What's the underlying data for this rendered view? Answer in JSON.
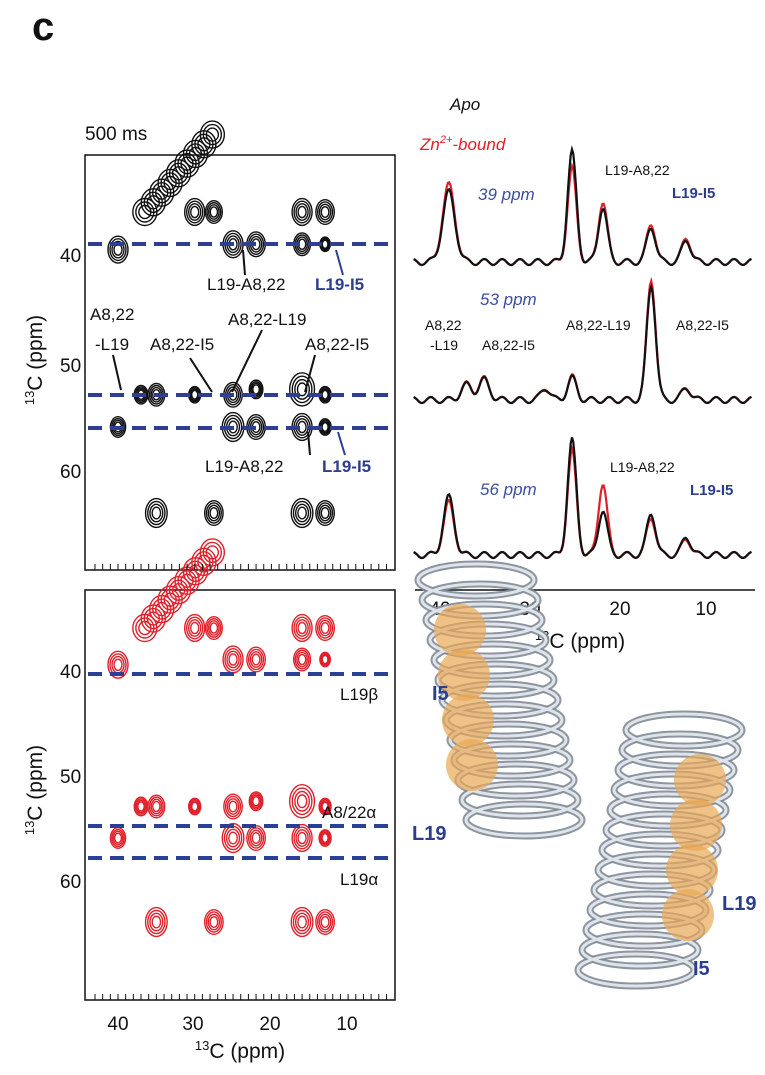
{
  "panel_label": "c",
  "top_left": {
    "title": "500 ms",
    "y_label_sup": "13",
    "y_label": "C (ppm)",
    "yticks": [
      "40",
      "50",
      "60"
    ],
    "annotations": [
      "L19-A8,22",
      "L19-I5",
      "A8,22",
      "-L19",
      "A8,22-I5",
      "A8,22-L19",
      "A8,22-I5",
      "L19-A8,22",
      "L19-I5"
    ]
  },
  "bottom_left": {
    "y_label_sup": "13",
    "y_label": "C (ppm)",
    "yticks": [
      "40",
      "50",
      "60"
    ],
    "xticks": [
      "40",
      "30",
      "20",
      "10"
    ],
    "x_label_sup": "13",
    "x_label": "C (ppm)",
    "annotations": [
      "L19β",
      "A8/22α",
      "L19α"
    ]
  },
  "spectra": {
    "legend": {
      "apo": "Apo",
      "zn": "Zn",
      "zn_sup": "2+",
      "zn_rest": "-bound"
    },
    "traces": [
      {
        "label": "39 ppm",
        "annotations": [
          "L19-A8,22",
          "L19-I5"
        ]
      },
      {
        "label": "53 ppm",
        "annotations": [
          "A8,22",
          "-L19",
          "A8,22-I5",
          "A8,22-L19",
          "A8,22-I5"
        ]
      },
      {
        "label": "56 ppm",
        "annotations": [
          "L19-A8,22",
          "L19-I5"
        ]
      }
    ],
    "xticks": [
      "40",
      "30",
      "20",
      "10"
    ],
    "x_label_sup": "13",
    "x_label": "C (ppm)"
  },
  "structure": {
    "labels": [
      "I5",
      "L19",
      "L19",
      "I5"
    ]
  }
}
